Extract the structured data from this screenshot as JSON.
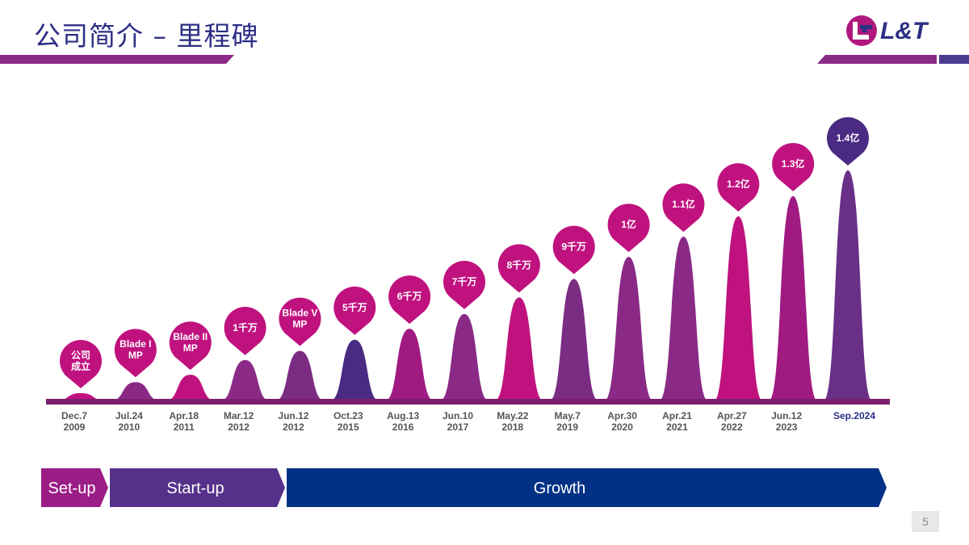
{
  "slide": {
    "title": "公司简介 – 里程碑",
    "logo_text": "L&T",
    "page_number": "5"
  },
  "colors": {
    "navy": "#2d2f86",
    "magenta": "#c0127f",
    "purple": "#7b2c83",
    "dark_purple": "#4a2a82",
    "growth_blue": "#013184",
    "baseline": "#7c1f6f"
  },
  "chart_data": {
    "type": "bar",
    "title": "",
    "xlabel": "",
    "ylabel": "",
    "categories": [
      "Dec.7\n2009",
      "Jul.24\n2010",
      "Apr.18\n2011",
      "Mar.12\n2012",
      "Jun.12\n2012",
      "Oct.23\n2015",
      "Aug.13\n2016",
      "Jun.10\n2017",
      "May.22\n2018",
      "May.7\n2019",
      "Apr.30\n2020",
      "Apr.21\n2021",
      "Apr.27\n2022",
      "Jun.12\n2023",
      "Sep.2024"
    ],
    "labels": [
      "公司\n成立",
      "Blade I\nMP",
      "Blade II\nMP",
      "1千万",
      "Blade V\nMP",
      "5千万",
      "6千万",
      "7千万",
      "8千万",
      "9千万",
      "1亿",
      "1.1亿",
      "1.2亿",
      "1.3亿",
      "1.4亿"
    ],
    "values": [
      4,
      10,
      14,
      22,
      27,
      33,
      39,
      47,
      56,
      66,
      78,
      89,
      100,
      111,
      125
    ],
    "bar_colors": [
      "#c0127f",
      "#8a2a86",
      "#c0127f",
      "#8a2a86",
      "#7b2c83",
      "#4a2a82",
      "#a01a82",
      "#8a2a86",
      "#c0127f",
      "#7b2c83",
      "#8a2a86",
      "#8a2a86",
      "#c0127f",
      "#a01a82",
      "#6a3088"
    ],
    "pin_colors": [
      "#c0127f",
      "#c0127f",
      "#c0127f",
      "#c0127f",
      "#c0127f",
      "#c0127f",
      "#c0127f",
      "#c0127f",
      "#c0127f",
      "#c0127f",
      "#c0127f",
      "#c0127f",
      "#c0127f",
      "#c0127f",
      "#4a2a82"
    ],
    "highlight_last_category": true
  },
  "phases": [
    {
      "label": "Set-up",
      "color": "#9b1d86"
    },
    {
      "label": "Start-up",
      "color": "#55318a"
    },
    {
      "label": "Growth",
      "color": "#013184"
    }
  ]
}
